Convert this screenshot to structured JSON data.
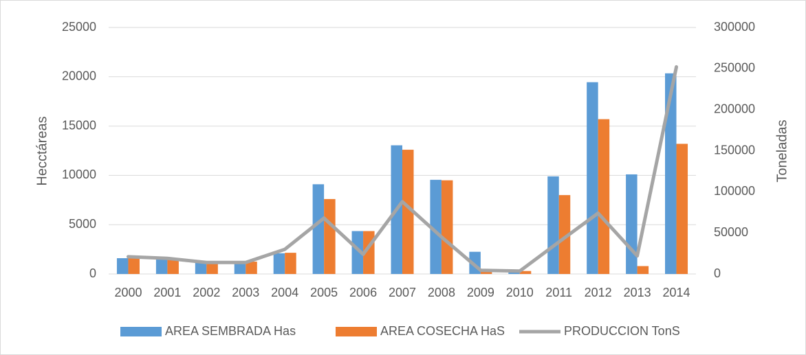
{
  "chart_data": {
    "type": "bar-line",
    "categories": [
      "2000",
      "2001",
      "2002",
      "2003",
      "2004",
      "2005",
      "2006",
      "2007",
      "2008",
      "2009",
      "2010",
      "2011",
      "2012",
      "2013",
      "2014"
    ],
    "series": [
      {
        "name": "AREA SEMBRADA Has",
        "color": "#5b9bd5",
        "type": "bar",
        "values": [
          1600,
          1650,
          1300,
          1250,
          2100,
          9100,
          4350,
          13050,
          9550,
          2250,
          300,
          9900,
          19450,
          10100,
          20350
        ]
      },
      {
        "name": "AREA COSECHA HaS",
        "color": "#ed7d31",
        "type": "bar",
        "values": [
          1600,
          1550,
          1250,
          1250,
          2150,
          7600,
          4350,
          12600,
          9500,
          250,
          300,
          8000,
          15700,
          800,
          13200
        ]
      },
      {
        "name": "PRODUCCION TonS",
        "color": "#a5a5a5",
        "type": "line",
        "axis": "y2",
        "values": [
          21000,
          19000,
          14000,
          14000,
          30000,
          68000,
          24000,
          88000,
          45000,
          4500,
          3500,
          39000,
          74000,
          22000,
          252000
        ]
      }
    ],
    "ylabel": "Hecctáreas",
    "y2label": "Toneladas",
    "ylim": [
      0,
      25000
    ],
    "yticks": [
      0,
      5000,
      10000,
      15000,
      20000,
      25000
    ],
    "y2lim": [
      0,
      300000
    ],
    "y2ticks": [
      0,
      50000,
      100000,
      150000,
      200000,
      250000,
      300000
    ],
    "grid": true,
    "legend": "bottom"
  }
}
